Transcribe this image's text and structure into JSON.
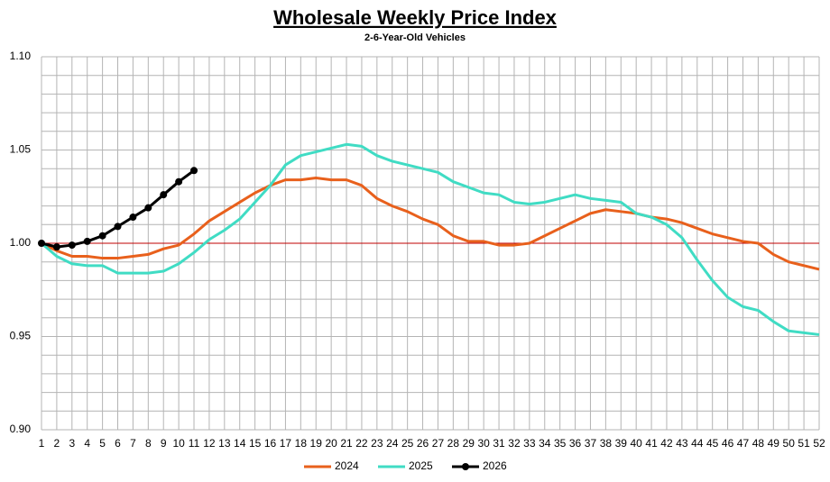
{
  "chart_data": {
    "type": "line",
    "title": "Wholesale Weekly Price Index",
    "subtitle": "2-6-Year-Old Vehicles",
    "x": [
      1,
      2,
      3,
      4,
      5,
      6,
      7,
      8,
      9,
      10,
      11,
      12,
      13,
      14,
      15,
      16,
      17,
      18,
      19,
      20,
      21,
      22,
      23,
      24,
      25,
      26,
      27,
      28,
      29,
      30,
      31,
      32,
      33,
      34,
      35,
      36,
      37,
      38,
      39,
      40,
      41,
      42,
      43,
      44,
      45,
      46,
      47,
      48,
      49,
      50,
      51,
      52
    ],
    "xlim": [
      1,
      52
    ],
    "xticks": [
      1,
      2,
      3,
      4,
      5,
      6,
      7,
      8,
      9,
      10,
      11,
      12,
      13,
      14,
      15,
      16,
      17,
      18,
      19,
      20,
      21,
      22,
      23,
      24,
      25,
      26,
      27,
      28,
      29,
      30,
      31,
      32,
      33,
      34,
      35,
      36,
      37,
      38,
      39,
      40,
      41,
      42,
      43,
      44,
      45,
      46,
      47,
      48,
      49,
      50,
      51,
      52
    ],
    "ylim": [
      0.9,
      1.1
    ],
    "yticks": [
      {
        "value": 1.1,
        "label": "1.10"
      },
      {
        "value": 1.05,
        "label": "1.05"
      },
      {
        "value": 1,
        "label": "1.00"
      },
      {
        "value": 0.95,
        "label": "0.95"
      },
      {
        "value": 0.9,
        "label": "0.90"
      }
    ],
    "ygrid": [
      0.9,
      0.91,
      0.92,
      0.93,
      0.94,
      0.95,
      0.96,
      0.97,
      0.98,
      0.99,
      1,
      1.01,
      1.02,
      1.03,
      1.04,
      1.05,
      1.06,
      1.07,
      1.08,
      1.09,
      1.1
    ],
    "grid": true,
    "reference_line": {
      "value": 1,
      "color": "#c00000"
    },
    "legend": "bottom",
    "series": [
      {
        "name": "2024",
        "color": "#e8601c",
        "markers": false,
        "values": [
          1.0,
          0.996,
          0.993,
          0.993,
          0.992,
          0.992,
          0.993,
          0.994,
          0.997,
          0.999,
          1.005,
          1.012,
          1.017,
          1.022,
          1.027,
          1.031,
          1.034,
          1.034,
          1.035,
          1.034,
          1.034,
          1.031,
          1.024,
          1.02,
          1.017,
          1.013,
          1.01,
          1.004,
          1.001,
          1.001,
          0.999,
          0.999,
          1.0,
          1.004,
          1.008,
          1.012,
          1.016,
          1.018,
          1.017,
          1.016,
          1.014,
          1.013,
          1.011,
          1.008,
          1.005,
          1.003,
          1.001,
          1.0,
          0.994,
          0.99,
          0.988,
          0.986
        ]
      },
      {
        "name": "2025",
        "color": "#40dcc4",
        "markers": false,
        "values": [
          1.0,
          0.993,
          0.989,
          0.988,
          0.988,
          0.984,
          0.984,
          0.984,
          0.985,
          0.989,
          0.995,
          1.002,
          1.007,
          1.013,
          1.022,
          1.031,
          1.042,
          1.047,
          1.049,
          1.051,
          1.053,
          1.052,
          1.047,
          1.044,
          1.042,
          1.04,
          1.038,
          1.033,
          1.03,
          1.027,
          1.026,
          1.022,
          1.021,
          1.022,
          1.024,
          1.026,
          1.024,
          1.023,
          1.022,
          1.016,
          1.014,
          1.01,
          1.003,
          0.991,
          0.98,
          0.971,
          0.966,
          0.964,
          0.958,
          0.953,
          0.952,
          0.951
        ]
      },
      {
        "name": "2026",
        "color": "#000000",
        "markers": true,
        "values": [
          1.0,
          0.998,
          0.999,
          1.001,
          1.004,
          1.009,
          1.014,
          1.019,
          1.026,
          1.033,
          1.039,
          null,
          null,
          null,
          null,
          null,
          null,
          null,
          null,
          null,
          null,
          null,
          null,
          null,
          null,
          null,
          null,
          null,
          null,
          null,
          null,
          null,
          null,
          null,
          null,
          null,
          null,
          null,
          null,
          null,
          null,
          null,
          null,
          null,
          null,
          null,
          null,
          null,
          null,
          null,
          null,
          null
        ]
      }
    ]
  }
}
